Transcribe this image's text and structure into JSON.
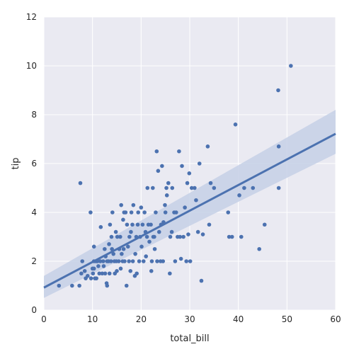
{
  "chart_data": {
    "type": "scatter",
    "xlabel": "total_bill",
    "ylabel": "tip",
    "xlim": [
      0,
      60
    ],
    "ylim": [
      0,
      12
    ],
    "xticks": [
      "0",
      "10",
      "20",
      "30",
      "40",
      "50",
      "60"
    ],
    "yticks": [
      "0",
      "2",
      "4",
      "6",
      "8",
      "10",
      "12"
    ],
    "grid": true,
    "style": "seaborn darkgrid",
    "colors": {
      "background": "#eaeaf2",
      "grid": "#ffffff",
      "point": "#4c72b0",
      "line": "#4c72b0",
      "band": "#c6d0e6"
    },
    "series": [
      {
        "points": [
          [
            3.1,
            1.0
          ],
          [
            5.8,
            1.0
          ],
          [
            7.3,
            1.0
          ],
          [
            7.5,
            5.2
          ],
          [
            7.7,
            1.5
          ],
          [
            7.9,
            2.0
          ],
          [
            8.4,
            1.6
          ],
          [
            8.6,
            1.3
          ],
          [
            9.0,
            1.4
          ],
          [
            9.6,
            4.0
          ],
          [
            9.7,
            1.3
          ],
          [
            10.0,
            1.7
          ],
          [
            10.1,
            1.5
          ],
          [
            10.3,
            2.0
          ],
          [
            10.3,
            1.7
          ],
          [
            10.5,
            1.3
          ],
          [
            10.7,
            2.0
          ],
          [
            10.8,
            1.3
          ],
          [
            10.3,
            2.6
          ],
          [
            11.0,
            2.0
          ],
          [
            11.2,
            1.8
          ],
          [
            11.4,
            1.5
          ],
          [
            11.6,
            2.0
          ],
          [
            11.7,
            3.4
          ],
          [
            12.0,
            1.5
          ],
          [
            12.2,
            2.0
          ],
          [
            12.3,
            1.8
          ],
          [
            12.5,
            2.5
          ],
          [
            12.6,
            1.5
          ],
          [
            12.7,
            2.2
          ],
          [
            12.9,
            1.1
          ],
          [
            13.0,
            2.0
          ],
          [
            13.0,
            1.0
          ],
          [
            13.3,
            2.0
          ],
          [
            13.4,
            2.7
          ],
          [
            13.5,
            1.5
          ],
          [
            13.6,
            3.5
          ],
          [
            13.8,
            2.0
          ],
          [
            13.9,
            3.0
          ],
          [
            14.0,
            2.5
          ],
          [
            14.1,
            4.0
          ],
          [
            14.3,
            2.3
          ],
          [
            14.5,
            2.0
          ],
          [
            14.6,
            1.5
          ],
          [
            14.8,
            3.2
          ],
          [
            14.9,
            2.0
          ],
          [
            15.0,
            1.6
          ],
          [
            15.1,
            3.0
          ],
          [
            15.4,
            2.0
          ],
          [
            15.5,
            2.5
          ],
          [
            15.7,
            3.0
          ],
          [
            15.8,
            1.7
          ],
          [
            15.9,
            4.3
          ],
          [
            16.0,
            2.3
          ],
          [
            16.2,
            2.0
          ],
          [
            16.3,
            3.7
          ],
          [
            16.4,
            2.5
          ],
          [
            16.5,
            4.0
          ],
          [
            16.6,
            2.0
          ],
          [
            16.8,
            4.0
          ],
          [
            17.0,
            1.0
          ],
          [
            17.1,
            3.5
          ],
          [
            17.3,
            2.6
          ],
          [
            17.5,
            2.0
          ],
          [
            17.6,
            3.0
          ],
          [
            17.8,
            1.6
          ],
          [
            17.9,
            3.2
          ],
          [
            18.0,
            4.0
          ],
          [
            18.2,
            3.5
          ],
          [
            18.3,
            2.0
          ],
          [
            18.4,
            4.3
          ],
          [
            18.7,
            1.4
          ],
          [
            18.8,
            2.3
          ],
          [
            19.0,
            3.0
          ],
          [
            19.1,
            1.5
          ],
          [
            19.3,
            3.5
          ],
          [
            19.4,
            4.0
          ],
          [
            19.6,
            2.0
          ],
          [
            19.8,
            3.0
          ],
          [
            20.0,
            4.2
          ],
          [
            20.1,
            2.6
          ],
          [
            20.3,
            3.5
          ],
          [
            20.5,
            2.0
          ],
          [
            20.7,
            4.0
          ],
          [
            20.9,
            3.2
          ],
          [
            21.0,
            2.2
          ],
          [
            21.2,
            3.0
          ],
          [
            21.3,
            5.0
          ],
          [
            21.5,
            3.5
          ],
          [
            21.7,
            2.8
          ],
          [
            22.0,
            3.5
          ],
          [
            22.1,
            1.6
          ],
          [
            22.2,
            2.0
          ],
          [
            22.4,
            5.0
          ],
          [
            22.5,
            3.0
          ],
          [
            22.7,
            3.0
          ],
          [
            22.8,
            2.5
          ],
          [
            23.0,
            4.0
          ],
          [
            23.2,
            6.5
          ],
          [
            23.3,
            2.0
          ],
          [
            23.5,
            5.7
          ],
          [
            23.7,
            3.2
          ],
          [
            24.0,
            2.0
          ],
          [
            24.1,
            3.5
          ],
          [
            24.3,
            5.9
          ],
          [
            24.5,
            2.0
          ],
          [
            24.6,
            3.6
          ],
          [
            24.9,
            4.3
          ],
          [
            25.0,
            4.0
          ],
          [
            25.2,
            5.0
          ],
          [
            25.3,
            4.7
          ],
          [
            25.6,
            5.2
          ],
          [
            25.9,
            1.5
          ],
          [
            26.0,
            3.0
          ],
          [
            26.3,
            3.2
          ],
          [
            26.4,
            5.0
          ],
          [
            26.8,
            4.0
          ],
          [
            27.0,
            2.0
          ],
          [
            27.2,
            4.0
          ],
          [
            27.5,
            3.0
          ],
          [
            27.8,
            6.5
          ],
          [
            28.0,
            3.0
          ],
          [
            28.2,
            2.1
          ],
          [
            28.4,
            5.9
          ],
          [
            28.7,
            3.0
          ],
          [
            29.0,
            4.2
          ],
          [
            29.3,
            2.0
          ],
          [
            29.5,
            5.2
          ],
          [
            29.7,
            3.1
          ],
          [
            29.9,
            5.6
          ],
          [
            30.1,
            2.0
          ],
          [
            30.4,
            5.0
          ],
          [
            31.0,
            5.0
          ],
          [
            31.3,
            4.5
          ],
          [
            31.7,
            3.2
          ],
          [
            32.0,
            6.0
          ],
          [
            32.4,
            1.2
          ],
          [
            32.7,
            3.1
          ],
          [
            33.7,
            6.7
          ],
          [
            34.0,
            3.5
          ],
          [
            34.3,
            5.2
          ],
          [
            35.0,
            5.0
          ],
          [
            37.9,
            4.0
          ],
          [
            38.1,
            3.0
          ],
          [
            38.7,
            3.0
          ],
          [
            39.4,
            7.6
          ],
          [
            40.2,
            4.7
          ],
          [
            40.6,
            3.0
          ],
          [
            41.2,
            5.0
          ],
          [
            43.0,
            5.0
          ],
          [
            44.3,
            2.5
          ],
          [
            45.4,
            3.5
          ],
          [
            48.2,
            9.0
          ],
          [
            48.3,
            6.7
          ],
          [
            48.3,
            5.0
          ],
          [
            50.8,
            10.0
          ]
        ]
      }
    ],
    "regression": {
      "intercept": 0.92,
      "slope": 0.105,
      "ci_band_at_x0": [
        0.5,
        1.4
      ],
      "ci_band_at_x60": [
        6.4,
        8.2
      ]
    }
  }
}
